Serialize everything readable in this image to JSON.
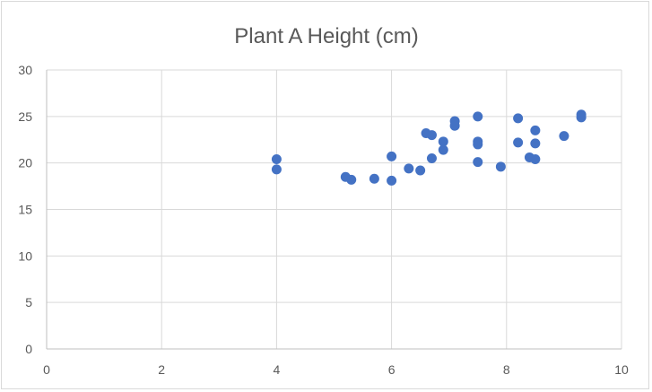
{
  "chart_data": {
    "type": "scatter",
    "title": "Plant A Height (cm)",
    "xlabel": "",
    "ylabel": "",
    "xlim": [
      0,
      10
    ],
    "ylim": [
      0,
      30
    ],
    "x_ticks": [
      0,
      2,
      4,
      6,
      8,
      10
    ],
    "y_ticks": [
      0,
      5,
      10,
      15,
      20,
      25,
      30
    ],
    "grid": true,
    "legend": "none",
    "series": [
      {
        "color": "#4472c4",
        "points": [
          {
            "x": 4.0,
            "y": 20.4
          },
          {
            "x": 4.0,
            "y": 19.3
          },
          {
            "x": 5.2,
            "y": 18.5
          },
          {
            "x": 5.3,
            "y": 18.2
          },
          {
            "x": 5.7,
            "y": 18.3
          },
          {
            "x": 6.0,
            "y": 20.7
          },
          {
            "x": 6.0,
            "y": 18.1
          },
          {
            "x": 6.3,
            "y": 19.4
          },
          {
            "x": 6.5,
            "y": 19.2
          },
          {
            "x": 6.6,
            "y": 23.2
          },
          {
            "x": 6.7,
            "y": 23.0
          },
          {
            "x": 6.7,
            "y": 20.5
          },
          {
            "x": 6.9,
            "y": 22.3
          },
          {
            "x": 6.9,
            "y": 21.4
          },
          {
            "x": 7.1,
            "y": 24.5
          },
          {
            "x": 7.1,
            "y": 24.0
          },
          {
            "x": 7.5,
            "y": 25.0
          },
          {
            "x": 7.5,
            "y": 22.3
          },
          {
            "x": 7.5,
            "y": 22.0
          },
          {
            "x": 7.5,
            "y": 20.1
          },
          {
            "x": 7.9,
            "y": 19.6
          },
          {
            "x": 8.2,
            "y": 24.8
          },
          {
            "x": 8.2,
            "y": 22.2
          },
          {
            "x": 8.4,
            "y": 20.6
          },
          {
            "x": 8.5,
            "y": 23.5
          },
          {
            "x": 8.5,
            "y": 22.1
          },
          {
            "x": 8.5,
            "y": 20.4
          },
          {
            "x": 9.0,
            "y": 22.9
          },
          {
            "x": 9.3,
            "y": 25.2
          },
          {
            "x": 9.3,
            "y": 24.9
          }
        ]
      }
    ]
  }
}
